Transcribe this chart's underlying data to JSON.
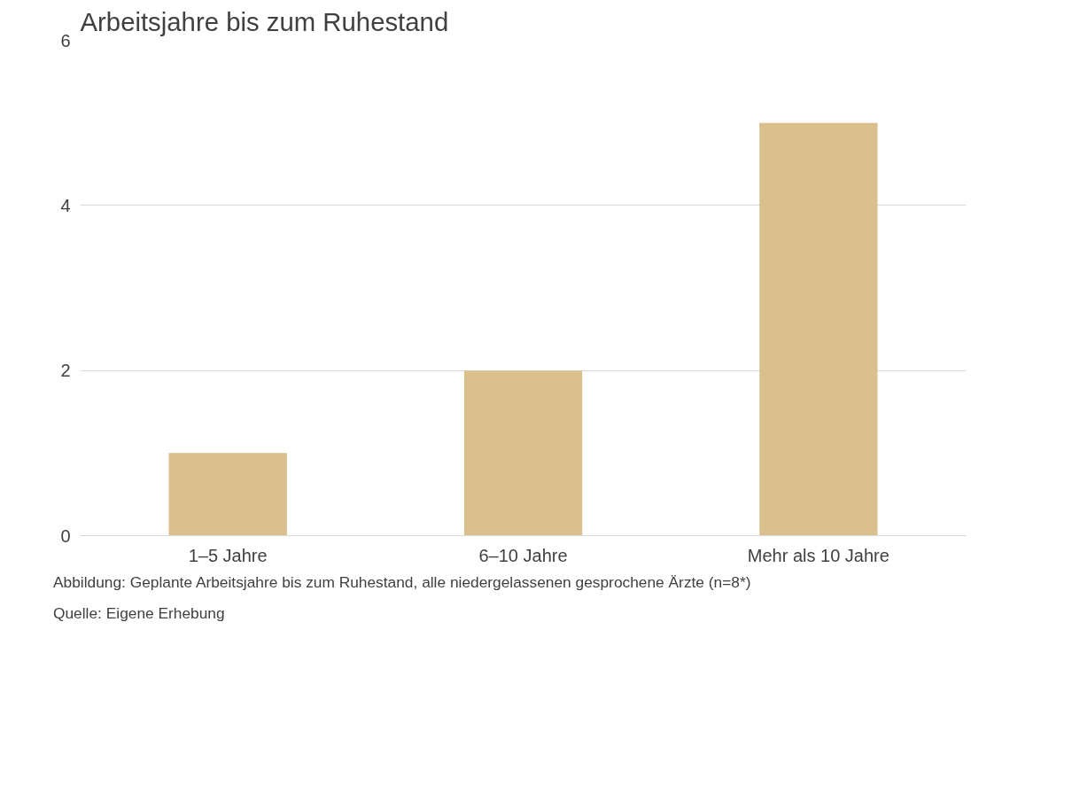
{
  "chart_data": {
    "type": "bar",
    "title": "Arbeitsjahre bis zum Ruhestand",
    "categories": [
      "1–5 Jahre",
      "6–10 Jahre",
      "Mehr als 10 Jahre"
    ],
    "values": [
      1,
      2,
      5
    ],
    "color": "#d9c08d",
    "ylim": [
      0,
      6
    ],
    "yticks": [
      0,
      2,
      4,
      6
    ],
    "grid": "y",
    "annotations": [
      "Abbildung: Geplante Arbeitsjahre bis zum Ruhestand, alle niedergelassenen gesprochene Ärzte (n=8*)",
      "Quelle: Eigene Erhebung"
    ]
  }
}
